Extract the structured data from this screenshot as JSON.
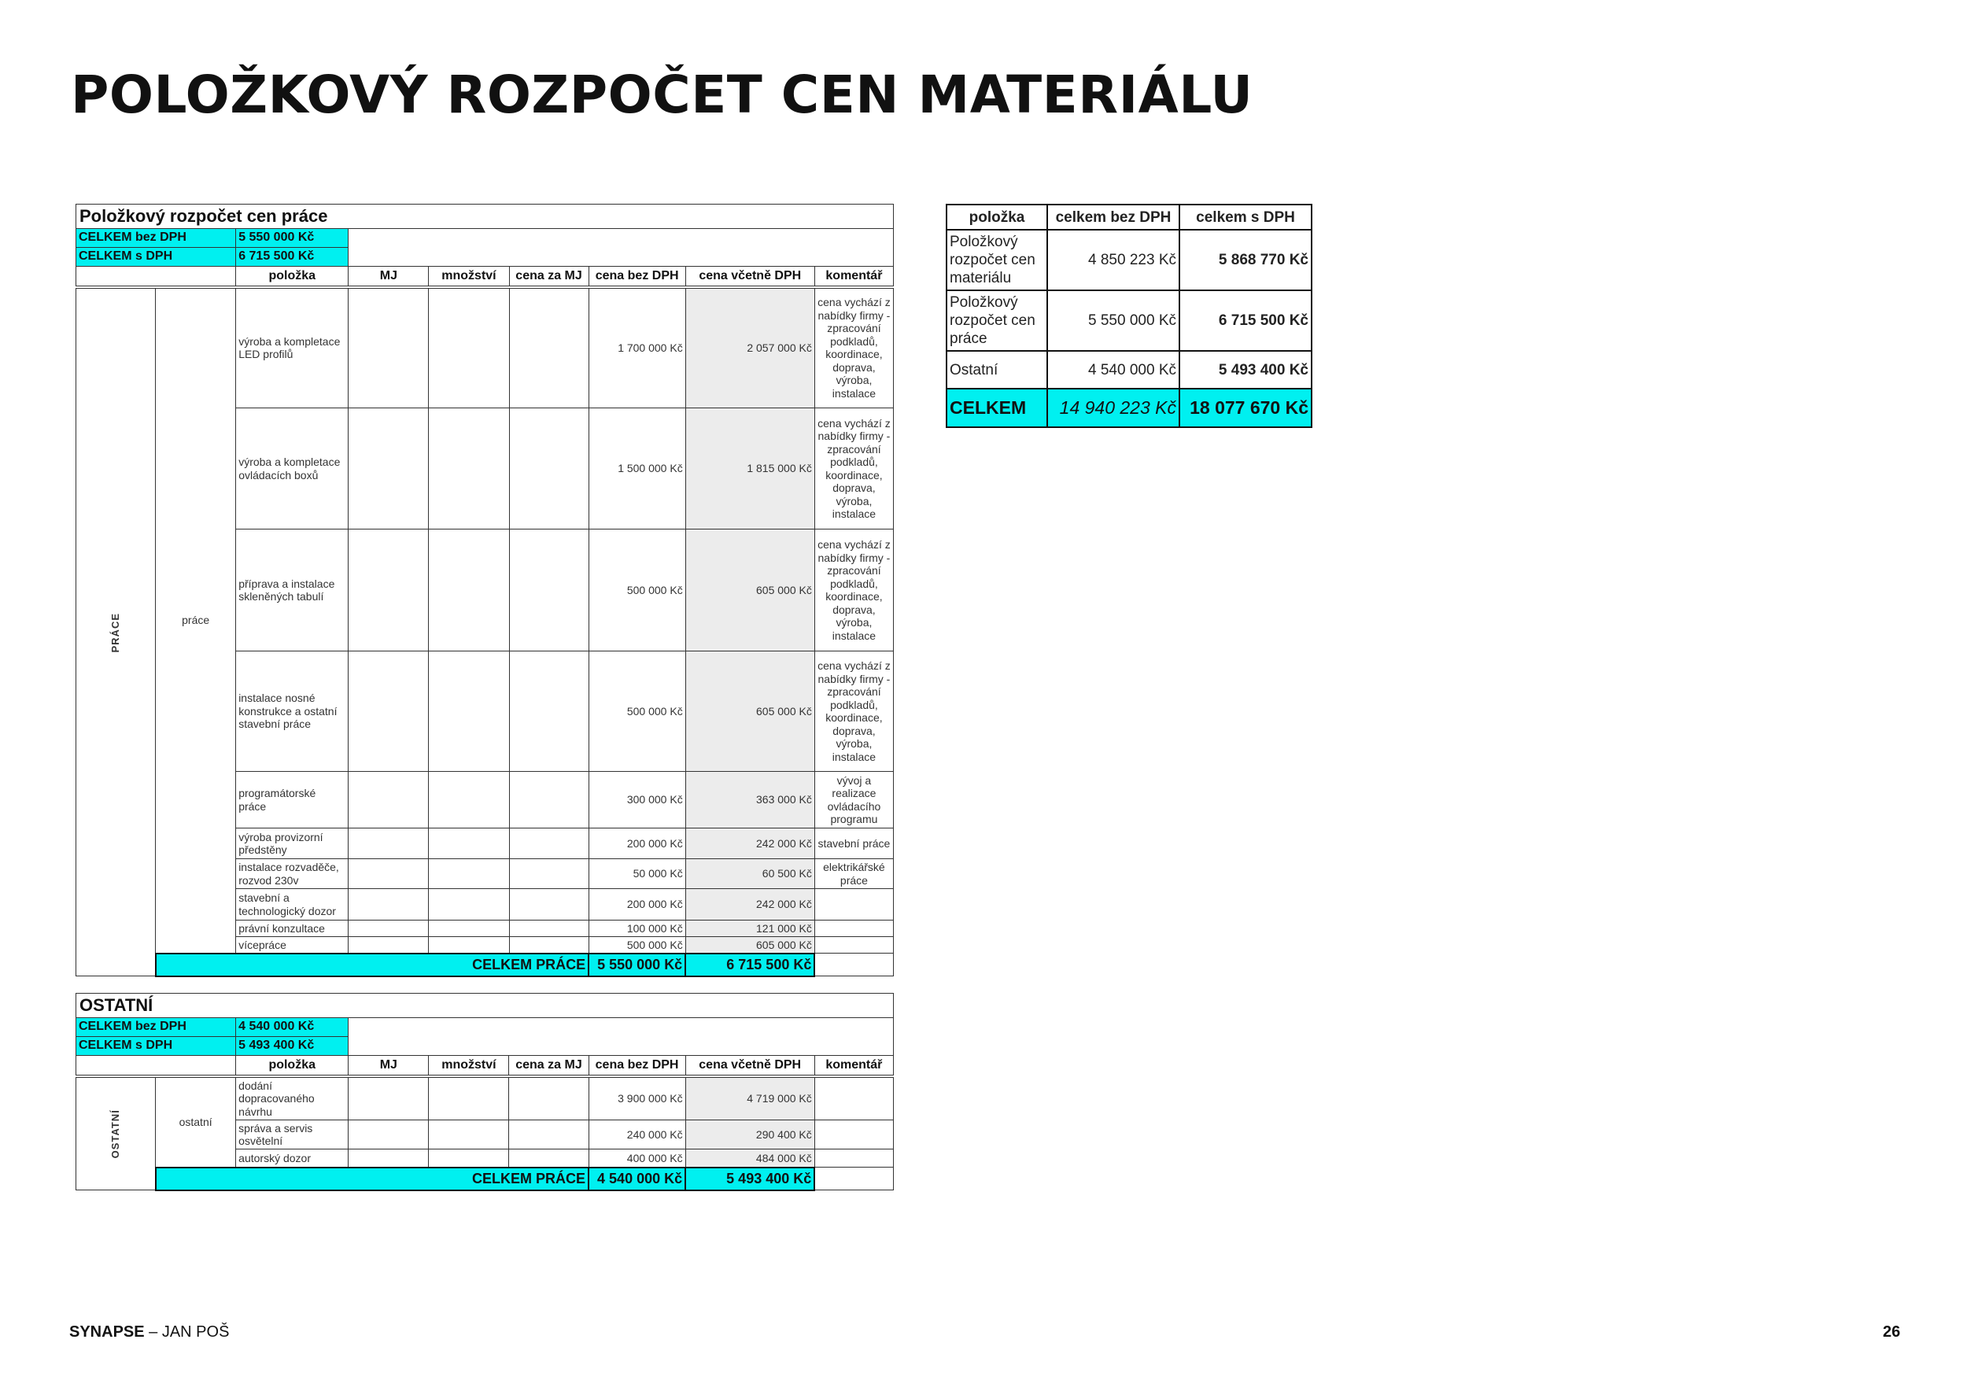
{
  "title": "POLOŽKOVÝ ROZPOČET CEN MATERIÁLU",
  "columns": [
    "položka",
    "MJ",
    "množství",
    "cena za MJ",
    "cena bez DPH",
    "cena včetně DPH",
    "komentář"
  ],
  "work": {
    "title": "Položkový rozpočet cen práce",
    "total_excl_label": "CELKEM bez DPH",
    "total_excl": "5 550 000 Kč",
    "total_incl_label": "CELKEM s DPH",
    "total_incl": "6 715 500 Kč",
    "group": "PRÁCE",
    "subgroup": "práce",
    "rows": [
      {
        "item": "výroba a kompletace LED profilů",
        "excl": "1 700 000 Kč",
        "incl": "2 057 000 Kč",
        "comment": "cena vychází z nabídky firmy - zpracování podkladů, koordinace, doprava, výroba, instalace"
      },
      {
        "item": "výroba a kompletace ovládacích boxů",
        "excl": "1 500 000 Kč",
        "incl": "1 815 000 Kč",
        "comment": "cena vychází z nabídky firmy - zpracování podkladů, koordinace, doprava, výroba, instalace"
      },
      {
        "item": "příprava a instalace skleněných tabulí",
        "excl": "500 000 Kč",
        "incl": "605 000 Kč",
        "comment": "cena vychází z nabídky firmy - zpracování podkladů, koordinace, doprava, výroba, instalace"
      },
      {
        "item": "instalace nosné konstrukce a ostatní stavební práce",
        "excl": "500 000 Kč",
        "incl": "605 000 Kč",
        "comment": "cena vychází z nabídky firmy - zpracování podkladů, koordinace, doprava, výroba, instalace"
      },
      {
        "item": "programátorské práce",
        "excl": "300 000 Kč",
        "incl": "363 000 Kč",
        "comment": "vývoj a realizace ovládacího programu"
      },
      {
        "item": "výroba provizorní předstěny",
        "excl": "200 000 Kč",
        "incl": "242 000 Kč",
        "comment": "stavební práce"
      },
      {
        "item": "instalace rozvaděče, rozvod 230v",
        "excl": "50 000 Kč",
        "incl": "60 500 Kč",
        "comment": "elektrikářské práce"
      },
      {
        "item": "stavební a technologický dozor",
        "excl": "200 000 Kč",
        "incl": "242 000 Kč",
        "comment": ""
      },
      {
        "item": "právní konzultace",
        "excl": "100 000 Kč",
        "incl": "121 000 Kč",
        "comment": ""
      },
      {
        "item": "vícepráce",
        "excl": "500 000 Kč",
        "incl": "605 000 Kč",
        "comment": ""
      }
    ],
    "sum_label": "CELKEM PRÁCE",
    "sum_excl": "5 550 000 Kč",
    "sum_incl": "6 715 500 Kč"
  },
  "other": {
    "title": "OSTATNÍ",
    "total_excl_label": "CELKEM bez DPH",
    "total_excl": "4 540 000 Kč",
    "total_incl_label": "CELKEM s DPH",
    "total_incl": "5 493 400 Kč",
    "group": "OSTATNÍ",
    "subgroup": "ostatní",
    "rows": [
      {
        "item": "dodání dopracovaného návrhu",
        "excl": "3 900 000 Kč",
        "incl": "4 719 000 Kč",
        "comment": ""
      },
      {
        "item": "správa a servis osvětelní",
        "excl": "240 000 Kč",
        "incl": "290 400 Kč",
        "comment": ""
      },
      {
        "item": "autorský dozor",
        "excl": "400 000 Kč",
        "incl": "484 000 Kč",
        "comment": ""
      }
    ],
    "sum_label": "CELKEM PRÁCE",
    "sum_excl": "4 540 000 Kč",
    "sum_incl": "5 493 400 Kč"
  },
  "summary": {
    "headers": [
      "položka",
      "celkem bez DPH",
      "celkem s DPH"
    ],
    "rows": [
      {
        "item": "Položkový rozpočet cen materiálu",
        "excl": "4 850 223 Kč",
        "incl": "5 868 770 Kč"
      },
      {
        "item": "Položkový rozpočet cen práce",
        "excl": "5 550 000 Kč",
        "incl": "6 715 500 Kč"
      },
      {
        "item": "Ostatní",
        "excl": "4 540 000 Kč",
        "incl": "5 493 400 Kč"
      }
    ],
    "total_label": "CELKEM",
    "total_excl": "14 940 223 Kč",
    "total_incl": "18 077 670 Kč"
  },
  "footer": {
    "brand": "SYNAPSE",
    "separator": " – ",
    "author": "JAN POŠ",
    "page": "26"
  },
  "colors": {
    "highlight": "#00f0f0",
    "grey_column": "#ececec"
  }
}
